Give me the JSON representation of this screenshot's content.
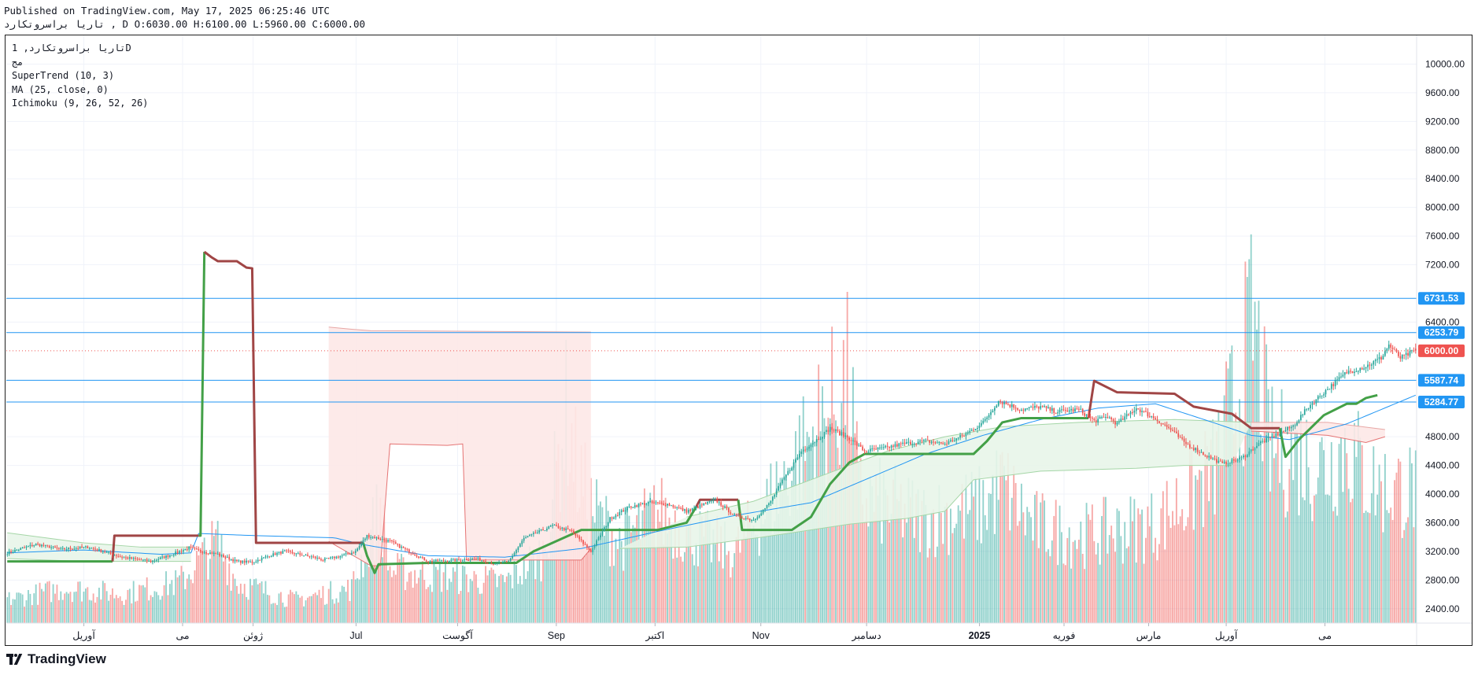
{
  "header": {
    "published": "Published on TradingView.com, May 17, 2025 06:25:46 UTC",
    "ohlc_line": "تاریا براسروتکارد , D O:6030.00 H:6100.00 L:5960.00 C:6000.00"
  },
  "legend": {
    "symbol": "تاریا براسروتکارد, 1D",
    "exchange": "مج",
    "supertrend": "SuperTrend (10, 3)",
    "ma": "MA (25, close, 0)",
    "ichimoku": "Ichimoku (9, 26, 52, 26)"
  },
  "branding": {
    "name": "TradingView"
  },
  "colors": {
    "up": "#26a69a",
    "down": "#ef5350",
    "st_up": "#43a047",
    "st_down": "#a04545",
    "ma": "#2196f3",
    "level": "#2196f3",
    "last_price": "#ef5350",
    "cloud_bull": "#e8f5e9",
    "cloud_bear": "#fde8e7"
  },
  "chart_data": {
    "type": "candlestick",
    "y_axis": {
      "range": [
        2200,
        10400
      ],
      "ticks": [
        "10000.00",
        "9600.00",
        "9200.00",
        "8800.00",
        "8400.00",
        "8000.00",
        "7600.00",
        "7200.00",
        "6400.00",
        "4800.00",
        "4400.00",
        "4000.00",
        "3600.00",
        "3200.00",
        "2800.00",
        "2400.00"
      ]
    },
    "x_axis": {
      "labels": [
        "آوریل",
        "می",
        "ژوئن",
        "Jul",
        "آگوست",
        "Sep",
        "اکتبر",
        "Nov",
        "دسامبر",
        "2025",
        "فوریه",
        "مارس",
        "آوریل",
        "می"
      ]
    },
    "price_levels": [
      {
        "label": "6731.53",
        "value": 6731.53,
        "style": "line",
        "color": "#2196f3"
      },
      {
        "label": "6253.79",
        "value": 6253.79,
        "style": "line",
        "color": "#2196f3"
      },
      {
        "label": "6000.00",
        "value": 6000.0,
        "style": "dotted",
        "color": "#ef5350"
      },
      {
        "label": "5587.74",
        "value": 5587.74,
        "style": "line",
        "color": "#2196f3"
      },
      {
        "label": "5284.77",
        "value": 5284.77,
        "style": "line",
        "color": "#2196f3"
      }
    ],
    "last": {
      "open": 6030,
      "high": 6100,
      "low": 5960,
      "close": 6000
    },
    "price_path": [
      [
        0,
        3180
      ],
      [
        15,
        3300
      ],
      [
        28,
        3230
      ],
      [
        42,
        3260
      ],
      [
        50,
        3200
      ],
      [
        60,
        3120
      ],
      [
        75,
        3060
      ],
      [
        85,
        3150
      ],
      [
        95,
        3250
      ],
      [
        100,
        3210
      ],
      [
        110,
        3160
      ],
      [
        120,
        3060
      ],
      [
        128,
        3050
      ],
      [
        138,
        3150
      ],
      [
        145,
        3200
      ],
      [
        152,
        3160
      ],
      [
        160,
        3120
      ],
      [
        165,
        3080
      ],
      [
        175,
        3140
      ],
      [
        182,
        3200
      ],
      [
        188,
        3420
      ],
      [
        200,
        3340
      ],
      [
        210,
        3200
      ],
      [
        220,
        3060
      ],
      [
        235,
        3080
      ],
      [
        245,
        3100
      ],
      [
        255,
        3020
      ],
      [
        262,
        3060
      ],
      [
        270,
        3380
      ],
      [
        285,
        3560
      ],
      [
        295,
        3480
      ],
      [
        305,
        3200
      ],
      [
        315,
        3660
      ],
      [
        325,
        3820
      ],
      [
        335,
        3880
      ],
      [
        345,
        3860
      ],
      [
        355,
        3760
      ],
      [
        370,
        3920
      ],
      [
        380,
        3700
      ],
      [
        390,
        3640
      ],
      [
        398,
        3860
      ],
      [
        405,
        4180
      ],
      [
        415,
        4600
      ],
      [
        425,
        4800
      ],
      [
        430,
        4920
      ],
      [
        440,
        4780
      ],
      [
        448,
        4600
      ],
      [
        458,
        4640
      ],
      [
        468,
        4700
      ],
      [
        480,
        4740
      ],
      [
        490,
        4700
      ],
      [
        500,
        4820
      ],
      [
        510,
        5000
      ],
      [
        518,
        5300
      ],
      [
        530,
        5180
      ],
      [
        540,
        5220
      ],
      [
        548,
        5150
      ],
      [
        560,
        5180
      ],
      [
        568,
        5020
      ],
      [
        575,
        5080
      ],
      [
        580,
        4980
      ],
      [
        590,
        5200
      ],
      [
        600,
        5050
      ],
      [
        608,
        4900
      ],
      [
        615,
        4720
      ],
      [
        625,
        4560
      ],
      [
        635,
        4420
      ],
      [
        645,
        4500
      ],
      [
        655,
        4720
      ],
      [
        665,
        4850
      ],
      [
        672,
        4950
      ],
      [
        680,
        5220
      ],
      [
        688,
        5420
      ],
      [
        700,
        5700
      ],
      [
        710,
        5780
      ],
      [
        718,
        5900
      ],
      [
        722,
        6080
      ],
      [
        728,
        5900
      ],
      [
        736,
        6000
      ]
    ],
    "moving_average": [
      [
        0,
        3180
      ],
      [
        40,
        3220
      ],
      [
        80,
        3160
      ],
      [
        96,
        3180
      ],
      [
        100,
        3450
      ],
      [
        130,
        3420
      ],
      [
        171,
        3390
      ],
      [
        185,
        3300
      ],
      [
        220,
        3140
      ],
      [
        260,
        3120
      ],
      [
        300,
        3240
      ],
      [
        340,
        3480
      ],
      [
        380,
        3700
      ],
      [
        420,
        3880
      ],
      [
        450,
        4220
      ],
      [
        480,
        4560
      ],
      [
        510,
        4820
      ],
      [
        540,
        5040
      ],
      [
        570,
        5200
      ],
      [
        600,
        5260
      ],
      [
        630,
        5000
      ],
      [
        650,
        4820
      ],
      [
        670,
        4760
      ],
      [
        700,
        4980
      ],
      [
        736,
        5380
      ]
    ],
    "supertrend": [
      {
        "trend": "up",
        "points": [
          [
            0,
            3060
          ],
          [
            55,
            3060
          ],
          [
            55,
            3060
          ]
        ]
      },
      {
        "trend": "down",
        "points": [
          [
            55,
            3060
          ],
          [
            56,
            3420
          ],
          [
            100,
            3420
          ]
        ]
      },
      {
        "trend": "up",
        "points": [
          [
            100,
            3420
          ],
          [
            101,
            3420
          ],
          [
            103,
            7380
          ]
        ]
      },
      {
        "trend": "down",
        "points": [
          [
            103,
            7380
          ],
          [
            107,
            7300
          ],
          [
            110,
            7250
          ],
          [
            120,
            7250
          ],
          [
            125,
            7160
          ],
          [
            128,
            7150
          ],
          [
            130,
            3320
          ],
          [
            186,
            3320
          ]
        ]
      },
      {
        "trend": "up",
        "points": [
          [
            186,
            3320
          ],
          [
            188,
            3140
          ],
          [
            192,
            2900
          ],
          [
            194,
            3020
          ],
          [
            220,
            3040
          ],
          [
            230,
            3040
          ],
          [
            266,
            3040
          ],
          [
            275,
            3200
          ],
          [
            290,
            3380
          ],
          [
            300,
            3500
          ],
          [
            340,
            3500
          ],
          [
            355,
            3600
          ],
          [
            360,
            3820
          ]
        ]
      },
      {
        "trend": "down",
        "points": [
          [
            360,
            3820
          ],
          [
            362,
            3920
          ],
          [
            382,
            3920
          ]
        ]
      },
      {
        "trend": "up",
        "points": [
          [
            382,
            3920
          ],
          [
            384,
            3500
          ],
          [
            410,
            3500
          ],
          [
            420,
            3680
          ],
          [
            430,
            4140
          ],
          [
            440,
            4440
          ],
          [
            448,
            4560
          ],
          [
            468,
            4560
          ],
          [
            505,
            4560
          ],
          [
            512,
            4740
          ],
          [
            520,
            5000
          ],
          [
            530,
            5060
          ],
          [
            555,
            5060
          ],
          [
            565,
            5060
          ]
        ]
      },
      {
        "trend": "down",
        "points": [
          [
            565,
            5060
          ],
          [
            568,
            5580
          ],
          [
            580,
            5420
          ],
          [
            610,
            5400
          ],
          [
            620,
            5220
          ],
          [
            640,
            5120
          ],
          [
            650,
            4920
          ],
          [
            665,
            4920
          ]
        ]
      },
      {
        "trend": "up",
        "points": [
          [
            665,
            4920
          ],
          [
            668,
            4520
          ],
          [
            675,
            4760
          ],
          [
            688,
            5100
          ],
          [
            700,
            5260
          ],
          [
            705,
            5260
          ],
          [
            710,
            5340
          ],
          [
            716,
            5380
          ]
        ]
      }
    ],
    "ichimoku_cloud": [
      {
        "kind": "bull",
        "upper": [
          [
            0,
            3460
          ],
          [
            40,
            3320
          ],
          [
            70,
            3260
          ],
          [
            96,
            3260
          ]
        ],
        "lower": [
          [
            0,
            3100
          ],
          [
            40,
            3060
          ],
          [
            70,
            3060
          ],
          [
            96,
            3060
          ]
        ]
      },
      {
        "kind": "bear",
        "upper": [
          [
            168,
            6330
          ],
          [
            180,
            6300
          ],
          [
            190,
            6280
          ],
          [
            250,
            6270
          ],
          [
            305,
            6260
          ]
        ],
        "lower": [
          [
            168,
            3340
          ],
          [
            190,
            3000
          ],
          [
            195,
            3000
          ],
          [
            200,
            4700
          ],
          [
            230,
            4680
          ],
          [
            238,
            4700
          ],
          [
            240,
            3080
          ],
          [
            300,
            3080
          ],
          [
            305,
            3240
          ]
        ]
      },
      {
        "kind": "bull",
        "upper": [
          [
            355,
            3680
          ],
          [
            390,
            3900
          ],
          [
            430,
            4300
          ],
          [
            460,
            4600
          ],
          [
            490,
            4800
          ],
          [
            520,
            4940
          ],
          [
            560,
            5000
          ],
          [
            610,
            5040
          ],
          [
            650,
            5000
          ]
        ],
        "lower": [
          [
            320,
            3240
          ],
          [
            355,
            3260
          ],
          [
            395,
            3400
          ],
          [
            440,
            3580
          ],
          [
            470,
            3660
          ],
          [
            490,
            3760
          ],
          [
            505,
            4200
          ],
          [
            540,
            4320
          ],
          [
            590,
            4360
          ],
          [
            615,
            4400
          ],
          [
            640,
            4400
          ]
        ]
      },
      {
        "kind": "bear",
        "upper": [
          [
            650,
            5000
          ],
          [
            690,
            5000
          ],
          [
            720,
            4900
          ]
        ],
        "lower": [
          [
            650,
            4880
          ],
          [
            690,
            4820
          ],
          [
            710,
            4720
          ],
          [
            720,
            4800
          ]
        ]
      }
    ],
    "volume_path": [
      [
        0,
        40
      ],
      [
        30,
        60
      ],
      [
        60,
        50
      ],
      [
        90,
        70
      ],
      [
        110,
        140
      ],
      [
        120,
        70
      ],
      [
        150,
        40
      ],
      [
        180,
        60
      ],
      [
        195,
        200
      ],
      [
        200,
        90
      ],
      [
        260,
        70
      ],
      [
        280,
        120
      ],
      [
        292,
        360
      ],
      [
        298,
        260
      ],
      [
        305,
        200
      ],
      [
        320,
        140
      ],
      [
        340,
        190
      ],
      [
        360,
        150
      ],
      [
        380,
        120
      ],
      [
        405,
        240
      ],
      [
        440,
        420
      ],
      [
        445,
        220
      ],
      [
        480,
        180
      ],
      [
        510,
        200
      ],
      [
        520,
        240
      ],
      [
        535,
        170
      ],
      [
        560,
        150
      ],
      [
        600,
        170
      ],
      [
        630,
        260
      ],
      [
        645,
        420
      ],
      [
        651,
        520
      ],
      [
        660,
        300
      ],
      [
        690,
        270
      ],
      [
        700,
        310
      ],
      [
        710,
        250
      ],
      [
        720,
        230
      ]
    ]
  }
}
